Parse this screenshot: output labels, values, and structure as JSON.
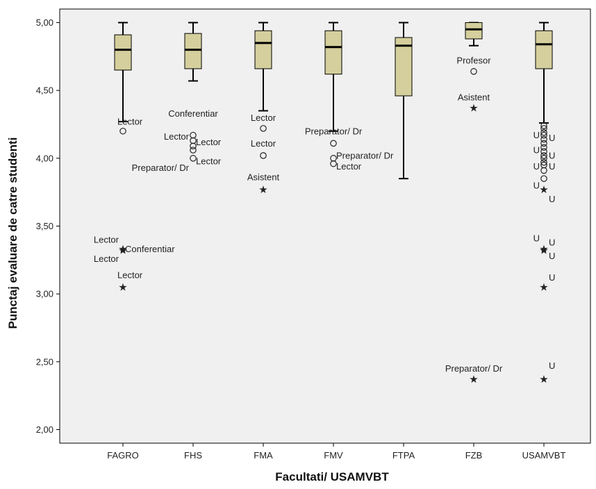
{
  "chart_data": {
    "type": "boxplot",
    "xlabel": "Facultati/ USAMVBT",
    "ylabel": "Punctaj evaluare de catre studenti",
    "ylim": [
      1.9,
      5.1
    ],
    "yticks": [
      "2,00",
      "2,50",
      "3,00",
      "3,50",
      "4,00",
      "4,50",
      "5,00"
    ],
    "ytick_values": [
      2.0,
      2.5,
      3.0,
      3.5,
      4.0,
      4.5,
      5.0
    ],
    "grid": false,
    "categories": [
      "FAGRO",
      "FHS",
      "FMA",
      "FMV",
      "FTPA",
      "FZB",
      "USAMVBT"
    ],
    "colors": {
      "box_fill": "#d4cf9c",
      "plot_bg": "#f0f0f0",
      "stroke": "#000000"
    },
    "boxes": [
      {
        "category": "FAGRO",
        "whisker_low": 4.27,
        "q1": 4.65,
        "median": 4.8,
        "q3": 4.91,
        "whisker_high": 5.0
      },
      {
        "category": "FHS",
        "whisker_low": 4.57,
        "q1": 4.66,
        "median": 4.8,
        "q3": 4.92,
        "whisker_high": 5.0
      },
      {
        "category": "FMA",
        "whisker_low": 4.35,
        "q1": 4.66,
        "median": 4.85,
        "q3": 4.94,
        "whisker_high": 5.0
      },
      {
        "category": "FMV",
        "whisker_low": 4.2,
        "q1": 4.62,
        "median": 4.82,
        "q3": 4.94,
        "whisker_high": 5.0
      },
      {
        "category": "FTPA",
        "whisker_low": 3.85,
        "q1": 4.46,
        "median": 4.83,
        "q3": 4.89,
        "whisker_high": 5.0
      },
      {
        "category": "FZB",
        "whisker_low": 4.83,
        "q1": 4.88,
        "median": 4.95,
        "q3": 5.0,
        "whisker_high": 5.0
      },
      {
        "category": "USAMVBT",
        "whisker_low": 4.26,
        "q1": 4.66,
        "median": 4.84,
        "q3": 4.94,
        "whisker_high": 5.0
      }
    ],
    "points": [
      {
        "category": "FAGRO",
        "y": 4.2,
        "marker": "circle"
      },
      {
        "category": "FAGRO",
        "y": 3.33,
        "marker": "star"
      },
      {
        "category": "FAGRO",
        "y": 3.32,
        "marker": "star"
      },
      {
        "category": "FAGRO",
        "y": 3.05,
        "marker": "star"
      },
      {
        "category": "FHS",
        "y": 4.17,
        "marker": "circle"
      },
      {
        "category": "FHS",
        "y": 4.13,
        "marker": "circle"
      },
      {
        "category": "FHS",
        "y": 4.09,
        "marker": "circle"
      },
      {
        "category": "FHS",
        "y": 4.06,
        "marker": "circle"
      },
      {
        "category": "FHS",
        "y": 4.0,
        "marker": "circle"
      },
      {
        "category": "FMA",
        "y": 4.22,
        "marker": "circle"
      },
      {
        "category": "FMA",
        "y": 4.02,
        "marker": "circle"
      },
      {
        "category": "FMA",
        "y": 3.77,
        "marker": "star"
      },
      {
        "category": "FMV",
        "y": 4.11,
        "marker": "circle"
      },
      {
        "category": "FMV",
        "y": 4.0,
        "marker": "circle"
      },
      {
        "category": "FMV",
        "y": 3.96,
        "marker": "circle"
      },
      {
        "category": "FZB",
        "y": 4.64,
        "marker": "circle"
      },
      {
        "category": "FZB",
        "y": 4.37,
        "marker": "star"
      },
      {
        "category": "FZB",
        "y": 2.37,
        "marker": "star"
      },
      {
        "category": "USAMVBT",
        "y": 4.24,
        "marker": "circle"
      },
      {
        "category": "USAMVBT",
        "y": 4.22,
        "marker": "circle"
      },
      {
        "category": "USAMVBT",
        "y": 4.19,
        "marker": "circle"
      },
      {
        "category": "USAMVBT",
        "y": 4.17,
        "marker": "circle"
      },
      {
        "category": "USAMVBT",
        "y": 4.14,
        "marker": "circle"
      },
      {
        "category": "USAMVBT",
        "y": 4.11,
        "marker": "circle"
      },
      {
        "category": "USAMVBT",
        "y": 4.08,
        "marker": "circle"
      },
      {
        "category": "USAMVBT",
        "y": 4.05,
        "marker": "circle"
      },
      {
        "category": "USAMVBT",
        "y": 4.02,
        "marker": "circle"
      },
      {
        "category": "USAMVBT",
        "y": 4.0,
        "marker": "circle"
      },
      {
        "category": "USAMVBT",
        "y": 3.97,
        "marker": "circle"
      },
      {
        "category": "USAMVBT",
        "y": 3.95,
        "marker": "circle"
      },
      {
        "category": "USAMVBT",
        "y": 3.91,
        "marker": "circle"
      },
      {
        "category": "USAMVBT",
        "y": 3.85,
        "marker": "circle"
      },
      {
        "category": "USAMVBT",
        "y": 3.77,
        "marker": "star"
      },
      {
        "category": "USAMVBT",
        "y": 3.33,
        "marker": "star"
      },
      {
        "category": "USAMVBT",
        "y": 3.32,
        "marker": "star"
      },
      {
        "category": "USAMVBT",
        "y": 3.05,
        "marker": "star"
      },
      {
        "category": "USAMVBT",
        "y": 2.37,
        "marker": "star"
      }
    ],
    "annotations": [
      {
        "category": "FAGRO",
        "y": 4.27,
        "text": "Lector",
        "side": "right"
      },
      {
        "category": "FAGRO",
        "y": 3.4,
        "text": "Lector",
        "side": "left"
      },
      {
        "category": "FAGRO",
        "y": 3.33,
        "text": "Conferentiar",
        "side": "right"
      },
      {
        "category": "FAGRO",
        "y": 3.26,
        "text": "Lector",
        "side": "left"
      },
      {
        "category": "FAGRO",
        "y": 3.14,
        "text": "Lector",
        "side": "right"
      },
      {
        "category": "FHS",
        "y": 4.33,
        "text": "Conferentiar",
        "side": "center"
      },
      {
        "category": "FHS",
        "y": 4.16,
        "text": "Lector",
        "side": "left"
      },
      {
        "category": "FHS",
        "y": 4.12,
        "text": "Lector",
        "side": "right"
      },
      {
        "category": "FHS",
        "y": 3.98,
        "text": "Lector",
        "side": "right"
      },
      {
        "category": "FHS",
        "y": 3.93,
        "text": "Preparator/ Dr",
        "side": "left"
      },
      {
        "category": "FMA",
        "y": 4.3,
        "text": "Lector",
        "side": "center"
      },
      {
        "category": "FMA",
        "y": 4.11,
        "text": "Lector",
        "side": "center"
      },
      {
        "category": "FMA",
        "y": 3.86,
        "text": "Asistent",
        "side": "center"
      },
      {
        "category": "FMV",
        "y": 4.2,
        "text": "Preparator/ Dr",
        "side": "center"
      },
      {
        "category": "FMV",
        "y": 4.02,
        "text": "Preparator/ Dr",
        "side": "right"
      },
      {
        "category": "FMV",
        "y": 3.94,
        "text": "Lector",
        "side": "right"
      },
      {
        "category": "FZB",
        "y": 4.72,
        "text": "Profesor",
        "side": "center"
      },
      {
        "category": "FZB",
        "y": 4.45,
        "text": "Asistent",
        "side": "center"
      },
      {
        "category": "FZB",
        "y": 2.45,
        "text": "Preparator/ Dr",
        "side": "center"
      },
      {
        "category": "USAMVBT",
        "y": 4.17,
        "text": "U",
        "side": "left"
      },
      {
        "category": "USAMVBT",
        "y": 4.15,
        "text": "U",
        "side": "right"
      },
      {
        "category": "USAMVBT",
        "y": 4.06,
        "text": "U",
        "side": "left"
      },
      {
        "category": "USAMVBT",
        "y": 4.02,
        "text": "U",
        "side": "right"
      },
      {
        "category": "USAMVBT",
        "y": 3.94,
        "text": "U",
        "side": "left"
      },
      {
        "category": "USAMVBT",
        "y": 3.94,
        "text": "U",
        "side": "right"
      },
      {
        "category": "USAMVBT",
        "y": 3.8,
        "text": "U",
        "side": "left"
      },
      {
        "category": "USAMVBT",
        "y": 3.7,
        "text": "U",
        "side": "right"
      },
      {
        "category": "USAMVBT",
        "y": 3.41,
        "text": "U",
        "side": "left"
      },
      {
        "category": "USAMVBT",
        "y": 3.38,
        "text": "U",
        "side": "right"
      },
      {
        "category": "USAMVBT",
        "y": 3.28,
        "text": "U",
        "side": "right"
      },
      {
        "category": "USAMVBT",
        "y": 3.12,
        "text": "U",
        "side": "right"
      },
      {
        "category": "USAMVBT",
        "y": 2.47,
        "text": "U",
        "side": "right"
      }
    ]
  }
}
